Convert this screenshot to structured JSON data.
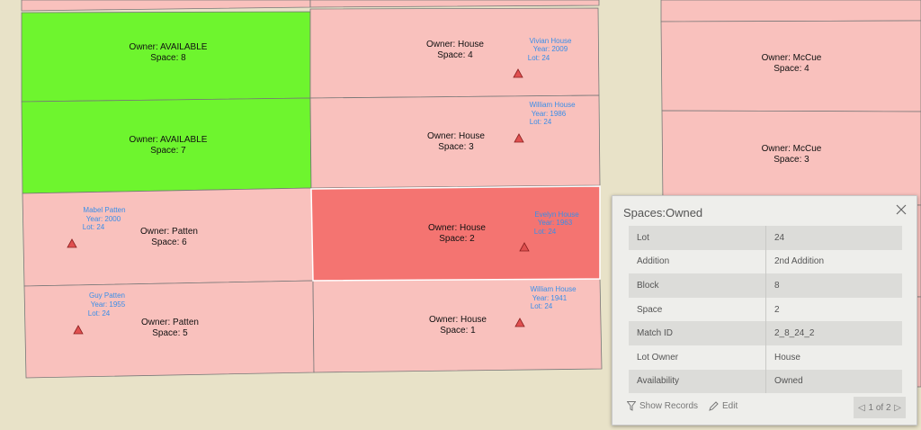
{
  "parcels": [
    {
      "id": "p1",
      "owner": "Owner: AVAILABLE",
      "space": "Space: 8",
      "fill": "#6ef52e"
    },
    {
      "id": "p2",
      "owner": "Owner: AVAILABLE",
      "space": "Space: 7",
      "fill": "#6ef52e"
    },
    {
      "id": "p3",
      "owner": "Owner: Patten",
      "space": "Space: 6",
      "fill": "#f9c1bd"
    },
    {
      "id": "p4",
      "owner": "Owner: Patten",
      "space": "Space: 5",
      "fill": "#f9c1bd"
    },
    {
      "id": "p5",
      "owner": "Owner: House",
      "space": "Space: 4",
      "fill": "#f9c1bd"
    },
    {
      "id": "p6",
      "owner": "Owner: House",
      "space": "Space: 3",
      "fill": "#f9c1bd"
    },
    {
      "id": "p7",
      "owner": "Owner: House",
      "space": "Space: 2",
      "fill": "#f47471"
    },
    {
      "id": "p8",
      "owner": "Owner: House",
      "space": "Space: 1",
      "fill": "#f9c1bd"
    },
    {
      "id": "p9",
      "owner": "Owner: McCue",
      "space": "Space: 4",
      "fill": "#f9c1bd"
    },
    {
      "id": "p10",
      "owner": "Owner: McCue",
      "space": "Space: 3",
      "fill": "#f9c1bd"
    }
  ],
  "burials": [
    {
      "name": "Vivian  House",
      "year": "Year: 2009",
      "lot": "Lot: 24"
    },
    {
      "name": "William House",
      "year": "Year: 1986",
      "lot": "Lot: 24"
    },
    {
      "name": "Mabel Patten",
      "year": "Year: 2000",
      "lot": "Lot: 24"
    },
    {
      "name": "Evelyn House",
      "year": "Year: 1963",
      "lot": "Lot: 24"
    },
    {
      "name": "Guy Patten",
      "year": "Year: 1955",
      "lot": "Lot: 24"
    },
    {
      "name": "William House",
      "year": "Year: 1941",
      "lot": "Lot: 24"
    }
  ],
  "colors": {
    "available": "#6ef52e",
    "owned": "#f9c1bd",
    "selected": "#f47471",
    "label_blue": "#3a8ee8",
    "marker": "#e05050",
    "background": "#e8e2c8"
  },
  "popup": {
    "title": "Spaces:Owned",
    "rows": [
      {
        "key": "Lot",
        "value": "24"
      },
      {
        "key": "Addition",
        "value": "2nd Addition"
      },
      {
        "key": "Block",
        "value": "8"
      },
      {
        "key": "Space",
        "value": "2"
      },
      {
        "key": "Match ID",
        "value": "2_8_24_2"
      },
      {
        "key": "Lot Owner",
        "value": "House"
      },
      {
        "key": "Availability",
        "value": "Owned"
      }
    ],
    "show_records": "Show Records",
    "edit": "Edit",
    "pager": "1 of 2"
  }
}
